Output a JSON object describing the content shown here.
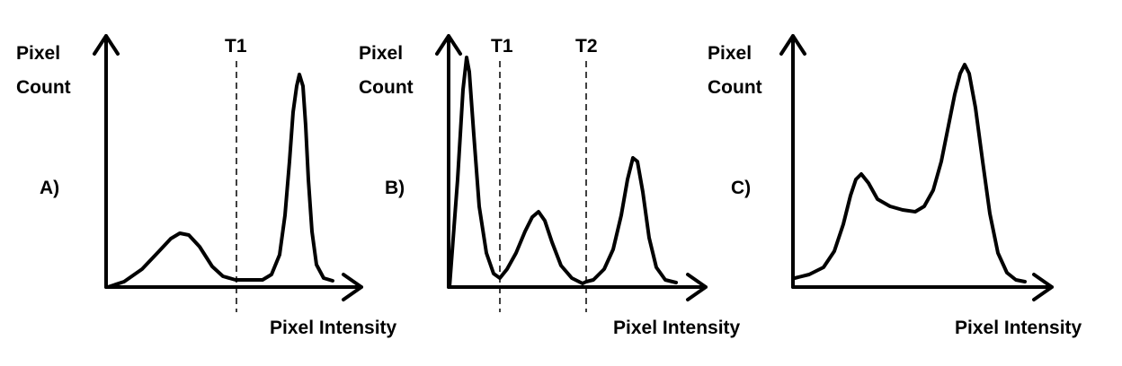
{
  "panels": [
    {
      "letter": "A)",
      "y_label": [
        "Pixel",
        "Count"
      ],
      "x_label": "Pixel Intensity",
      "thresholds": [
        "T1"
      ]
    },
    {
      "letter": "B)",
      "y_label": [
        "Pixel",
        "Count"
      ],
      "x_label": "Pixel Intensity",
      "thresholds": [
        "T1",
        "T2"
      ]
    },
    {
      "letter": "C)",
      "y_label": [
        "Pixel",
        "Count"
      ],
      "x_label": "Pixel Intensity",
      "thresholds": []
    }
  ]
}
